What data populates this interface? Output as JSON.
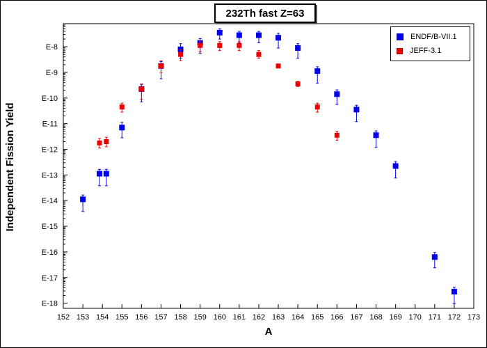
{
  "chart_data": {
    "type": "scatter",
    "title": "232Th fast Z=63",
    "xlabel": "A",
    "ylabel": "Independent Fission Yield",
    "xlim": [
      152,
      173
    ],
    "ylim": [
      -18.2,
      -7.1
    ],
    "y_scale": "log",
    "x_ticks": [
      "152",
      "153",
      "154",
      "155",
      "156",
      "157",
      "158",
      "159",
      "160",
      "161",
      "162",
      "163",
      "164",
      "165",
      "166",
      "167",
      "168",
      "169",
      "170",
      "171",
      "172",
      "173"
    ],
    "y_ticks": [
      {
        "label": "E-8",
        "value": -8
      },
      {
        "label": "E-9",
        "value": -9
      },
      {
        "label": "E-10",
        "value": -10
      },
      {
        "label": "E-11",
        "value": -11
      },
      {
        "label": "E-12",
        "value": -12
      },
      {
        "label": "E-13",
        "value": -13
      },
      {
        "label": "E-14",
        "value": -14
      },
      {
        "label": "E-15",
        "value": -15
      },
      {
        "label": "E-16",
        "value": -16
      },
      {
        "label": "E-17",
        "value": -17
      },
      {
        "label": "E-18",
        "value": -18
      }
    ],
    "grid": false,
    "legend_position": "top-right",
    "series": [
      {
        "name": "ENDF/B-VII.1",
        "color": "#0000ee",
        "marker": "square",
        "points": [
          {
            "x": 153,
            "y": -13.95,
            "lo": -14.42,
            "hi": -13.78
          },
          {
            "x": 153.85,
            "y": -12.95,
            "lo": -13.42,
            "hi": -12.78
          },
          {
            "x": 154.2,
            "y": -12.95,
            "lo": -13.42,
            "hi": -12.78
          },
          {
            "x": 155,
            "y": -11.15,
            "lo": -11.55,
            "hi": -10.95
          },
          {
            "x": 156,
            "y": -9.65,
            "lo": -10.15,
            "hi": -9.48
          },
          {
            "x": 157,
            "y": -8.75,
            "lo": -9.25,
            "hi": -8.58
          },
          {
            "x": 158,
            "y": -8.1,
            "lo": -8.45,
            "hi": -7.88
          },
          {
            "x": 159,
            "y": -7.85,
            "lo": -8.25,
            "hi": -7.68
          },
          {
            "x": 160,
            "y": -7.45,
            "lo": -7.7,
            "hi": -7.3
          },
          {
            "x": 161,
            "y": -7.55,
            "lo": -7.85,
            "hi": -7.4
          },
          {
            "x": 162,
            "y": -7.55,
            "lo": -7.85,
            "hi": -7.4
          },
          {
            "x": 163,
            "y": -7.65,
            "lo": -8.05,
            "hi": -7.48
          },
          {
            "x": 164,
            "y": -8.05,
            "lo": -8.45,
            "hi": -7.88
          },
          {
            "x": 165,
            "y": -8.95,
            "lo": -9.42,
            "hi": -8.78
          },
          {
            "x": 166,
            "y": -9.85,
            "lo": -10.25,
            "hi": -9.68
          },
          {
            "x": 167,
            "y": -10.45,
            "lo": -10.92,
            "hi": -10.28
          },
          {
            "x": 168,
            "y": -11.45,
            "lo": -11.92,
            "hi": -11.28
          },
          {
            "x": 169,
            "y": -12.65,
            "lo": -13.12,
            "hi": -12.48
          },
          {
            "x": 171,
            "y": -16.2,
            "lo": -16.62,
            "hi": -16.02
          },
          {
            "x": 172,
            "y": -17.55,
            "lo": -18.02,
            "hi": -17.38
          }
        ]
      },
      {
        "name": "JEFF-3.1",
        "color": "#ee0000",
        "marker": "square",
        "points": [
          {
            "x": 153.85,
            "y": -11.75,
            "lo": -11.95,
            "hi": -11.58
          },
          {
            "x": 154.2,
            "y": -11.7,
            "lo": -11.9,
            "hi": -11.53
          },
          {
            "x": 155,
            "y": -10.35,
            "lo": -10.55,
            "hi": -10.2
          },
          {
            "x": 156,
            "y": -9.65,
            "lo": -10.05,
            "hi": -9.45
          },
          {
            "x": 157,
            "y": -8.75,
            "lo": -9.0,
            "hi": -8.55
          },
          {
            "x": 158,
            "y": -8.3,
            "lo": -8.55,
            "hi": -8.12
          },
          {
            "x": 159,
            "y": -7.95,
            "lo": -8.2,
            "hi": -7.78
          },
          {
            "x": 160,
            "y": -7.95,
            "lo": -8.15,
            "hi": -7.8
          },
          {
            "x": 161,
            "y": -7.95,
            "lo": -8.15,
            "hi": -7.8
          },
          {
            "x": 162,
            "y": -8.3,
            "lo": -8.45,
            "hi": -8.15
          },
          {
            "x": 163,
            "y": -8.75,
            "lo": -8.8,
            "hi": -8.7
          },
          {
            "x": 164,
            "y": -9.45,
            "lo": -9.55,
            "hi": -9.35
          },
          {
            "x": 165,
            "y": -10.35,
            "lo": -10.55,
            "hi": -10.2
          },
          {
            "x": 166,
            "y": -11.45,
            "lo": -11.65,
            "hi": -11.3
          }
        ]
      }
    ]
  }
}
